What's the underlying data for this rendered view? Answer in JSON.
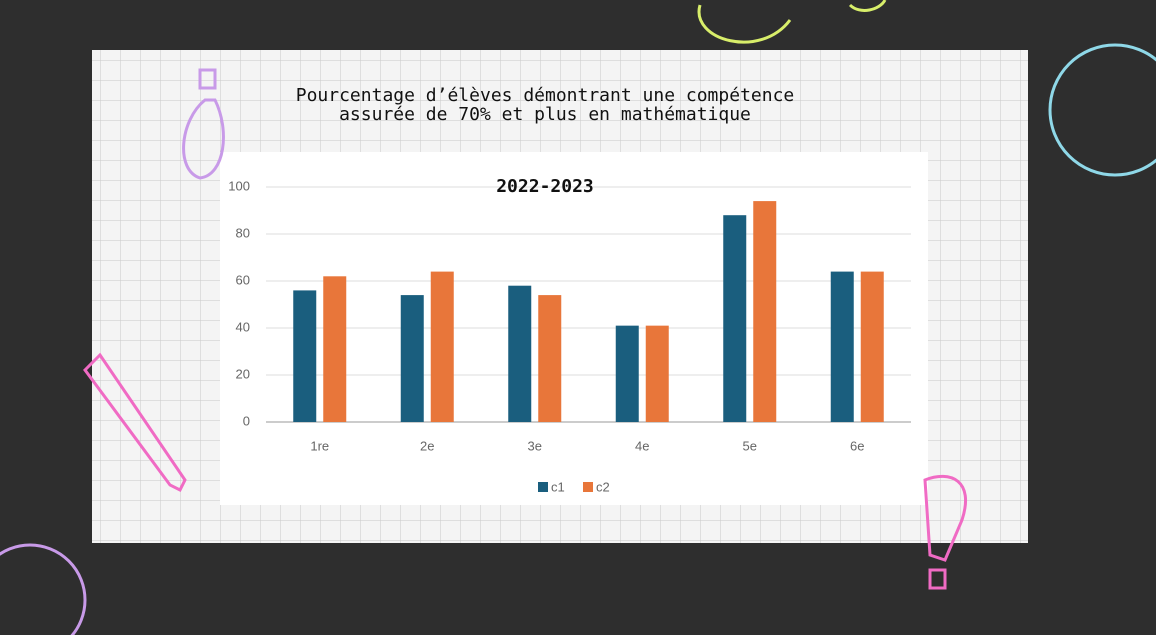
{
  "chart_data": {
    "type": "bar",
    "title": "Pourcentage d’élèves démontrant une compétence assurée de 70% et plus en mathématique",
    "subtitle": "2022-2023",
    "categories": [
      "1re",
      "2e",
      "3e",
      "4e",
      "5e",
      "6e"
    ],
    "series": [
      {
        "name": "c1",
        "color": "#1a5e7e",
        "values": [
          56,
          54,
          58,
          41,
          88,
          64
        ]
      },
      {
        "name": "c2",
        "color": "#e8763a",
        "values": [
          62,
          64,
          54,
          41,
          94,
          64
        ]
      }
    ],
    "ylim": [
      0,
      100
    ],
    "yticks": [
      0,
      20,
      40,
      60,
      80,
      100
    ],
    "grid": true,
    "legend": "bottom"
  }
}
